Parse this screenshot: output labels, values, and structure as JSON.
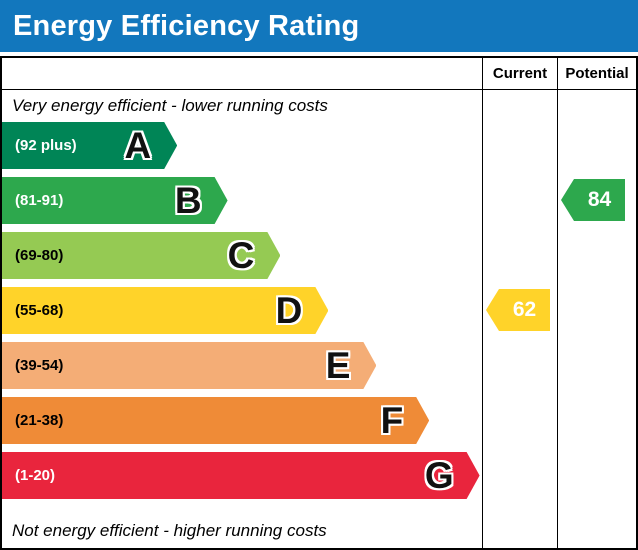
{
  "title": "Energy Efficiency Rating",
  "header": {
    "current": "Current",
    "potential": "Potential"
  },
  "notes": {
    "top": "Very energy efficient - lower running costs",
    "bottom": "Not energy efficient - higher running costs"
  },
  "colors": {
    "title_bar_bg": "#1277bd",
    "title_text": "#ffffff",
    "border": "#000000"
  },
  "chart_data": {
    "type": "bar",
    "subtype": "epc-energy-efficiency-rating",
    "title": "Energy Efficiency Rating",
    "bands": [
      {
        "letter": "A",
        "range": "(92 plus)",
        "min": 92,
        "max": 100,
        "color": "#008556",
        "text_color": "#ffffff",
        "width_pct": 36.5
      },
      {
        "letter": "B",
        "range": "(81-91)",
        "min": 81,
        "max": 91,
        "color": "#2da84d",
        "text_color": "#ffffff",
        "width_pct": 47
      },
      {
        "letter": "C",
        "range": "(69-80)",
        "min": 69,
        "max": 80,
        "color": "#95ca53",
        "text_color": "#000000",
        "width_pct": 58
      },
      {
        "letter": "D",
        "range": "(55-68)",
        "min": 55,
        "max": 68,
        "color": "#ffd329",
        "text_color": "#000000",
        "width_pct": 68
      },
      {
        "letter": "E",
        "range": "(39-54)",
        "min": 39,
        "max": 54,
        "color": "#f4ad76",
        "text_color": "#000000",
        "width_pct": 78
      },
      {
        "letter": "F",
        "range": "(21-38)",
        "min": 21,
        "max": 38,
        "color": "#ef8b37",
        "text_color": "#000000",
        "width_pct": 89
      },
      {
        "letter": "G",
        "range": "(1-20)",
        "min": 1,
        "max": 20,
        "color": "#e9253d",
        "text_color": "#ffffff",
        "width_pct": 99.5
      }
    ],
    "current": {
      "value": 62,
      "band": "D",
      "band_index": 3,
      "color": "#ffd329"
    },
    "potential": {
      "value": 84,
      "band": "B",
      "band_index": 1,
      "color": "#2da84d"
    }
  }
}
